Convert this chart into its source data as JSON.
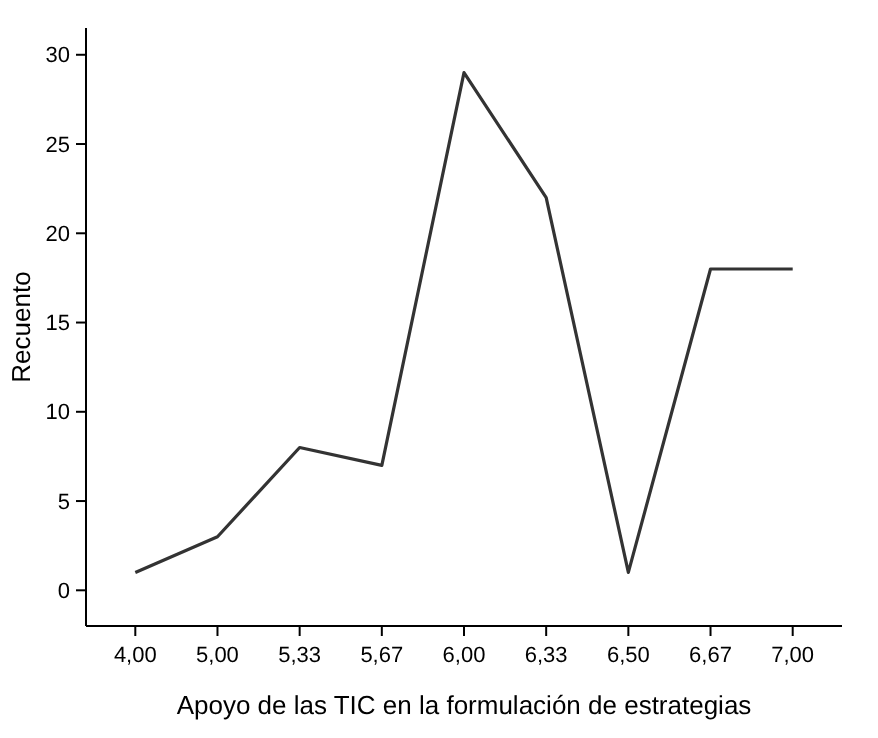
{
  "chart_data": {
    "type": "line",
    "xlabel": "Apoyo de las TIC en la formulación de estrategias",
    "ylabel": "Recuento",
    "categories": [
      "4,00",
      "5,00",
      "5,33",
      "5,67",
      "6,00",
      "6,33",
      "6,50",
      "6,67",
      "7,00"
    ],
    "series": [
      {
        "color": "#333333",
        "values": [
          1,
          3,
          8,
          7,
          29,
          22,
          1,
          18,
          18
        ]
      }
    ],
    "ylim": [
      -2,
      31.5
    ],
    "yticks": [
      0,
      5,
      10,
      15,
      20,
      25,
      30
    ],
    "grid": false,
    "marker": "none",
    "line_style": "solid"
  }
}
